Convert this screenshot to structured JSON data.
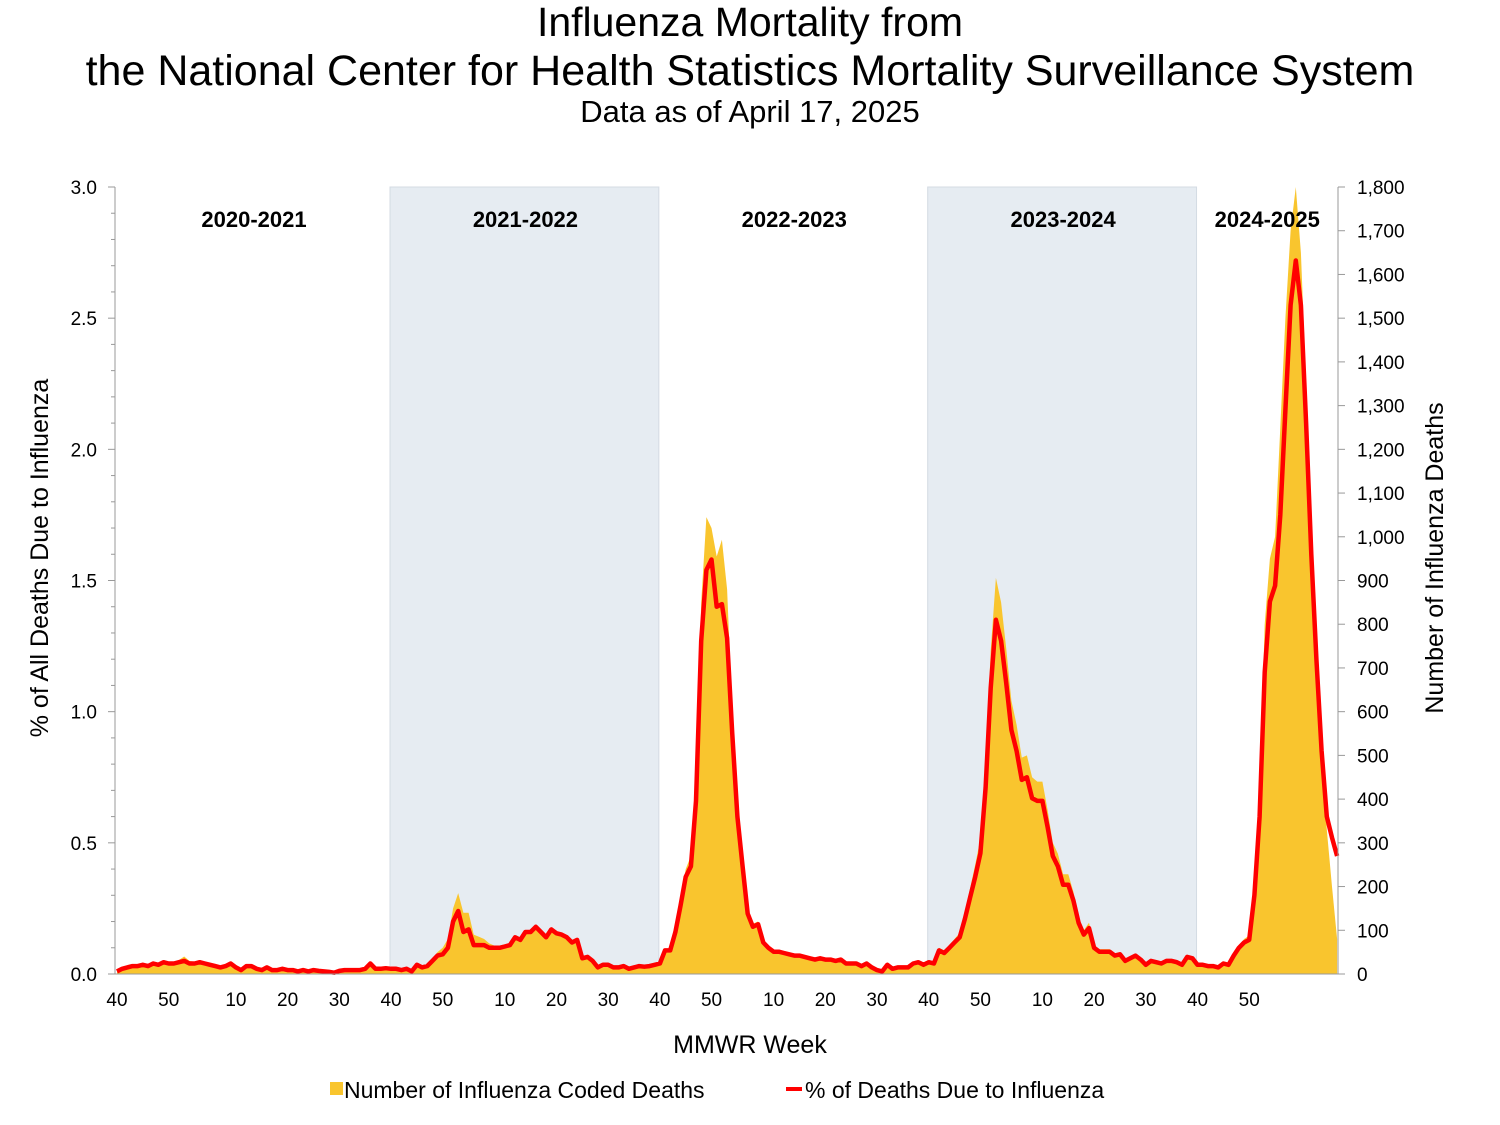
{
  "title_line1": "Influenza Mortality from",
  "title_line2": "the National Center for Health Statistics Mortality Surveillance System",
  "subtitle": "Data as of April 17, 2025",
  "chart_data": {
    "type": "area+line",
    "xlabel": "MMWR Week",
    "ylabel_left": "% of All Deaths Due to Influenza",
    "ylabel_right": "Number of Influenza Deaths",
    "ylim_left": [
      0,
      3.0
    ],
    "ylim_right": [
      0,
      1800
    ],
    "left_ticks": [
      "0.0",
      "0.5",
      "1.0",
      "1.5",
      "2.0",
      "2.5",
      "3.0"
    ],
    "right_ticks": [
      "0",
      "100",
      "200",
      "300",
      "400",
      "500",
      "600",
      "700",
      "800",
      "900",
      "1,000",
      "1,100",
      "1,200",
      "1,300",
      "1,400",
      "1,500",
      "1,600",
      "1,700",
      "1,800"
    ],
    "x_tick_weeks": [
      40,
      50,
      10,
      20,
      30
    ],
    "start_week": 40,
    "grid": false,
    "legend_placement": "bottom",
    "colors": {
      "deaths_area": "#F9C52E",
      "pct_line": "#FF0000",
      "shaded_season": "#E6ECF2"
    },
    "legend": {
      "deaths": "Number of Influenza Coded Deaths",
      "pct": "% of Deaths Due to Influenza"
    },
    "seasons": [
      {
        "label": "2020-2021",
        "shaded": false,
        "pct": [
          0.01,
          0.02,
          0.025,
          0.03,
          0.03,
          0.035,
          0.03,
          0.04,
          0.035,
          0.045,
          0.04,
          0.04,
          0.045,
          0.05,
          0.04,
          0.04,
          0.045,
          0.04,
          0.035,
          0.03,
          0.025,
          0.03,
          0.04,
          0.025,
          0.015,
          0.03,
          0.03,
          0.02,
          0.015,
          0.025,
          0.015,
          0.015,
          0.02,
          0.015,
          0.015,
          0.01,
          0.015,
          0.01,
          0.015,
          0.012,
          0.01,
          0.008,
          0.005,
          0.012,
          0.015,
          0.015,
          0.015,
          0.015,
          0.02,
          0.04,
          0.02,
          0.02,
          0.022
        ],
        "deaths": [
          6,
          13,
          16,
          19,
          20,
          23,
          20,
          26,
          23,
          29,
          27,
          28,
          32,
          40,
          30,
          28,
          30,
          26,
          22,
          19,
          16,
          19,
          25,
          16,
          9,
          19,
          19,
          12,
          9,
          16,
          9,
          9,
          12,
          9,
          9,
          6,
          9,
          6,
          9,
          7,
          6,
          5,
          3,
          7,
          9,
          9,
          9,
          9,
          12,
          25,
          12,
          12,
          14
        ]
      },
      {
        "label": "2021-2022",
        "shaded": true,
        "pct": [
          0.02,
          0.02,
          0.015,
          0.02,
          0.01,
          0.035,
          0.025,
          0.03,
          0.05,
          0.07,
          0.075,
          0.1,
          0.2,
          0.24,
          0.16,
          0.17,
          0.11,
          0.11,
          0.11,
          0.1,
          0.1,
          0.1,
          0.105,
          0.11,
          0.14,
          0.13,
          0.16,
          0.16,
          0.18,
          0.16,
          0.14,
          0.17,
          0.155,
          0.15,
          0.14,
          0.12,
          0.13,
          0.06,
          0.065,
          0.05,
          0.025,
          0.035,
          0.035,
          0.025,
          0.025,
          0.03,
          0.02,
          0.025,
          0.03,
          0.028,
          0.03,
          0.035
        ],
        "deaths": [
          12,
          12,
          9,
          12,
          6,
          22,
          16,
          19,
          35,
          50,
          60,
          80,
          150,
          185,
          140,
          140,
          90,
          85,
          80,
          70,
          65,
          65,
          68,
          70,
          88,
          82,
          98,
          100,
          108,
          96,
          85,
          100,
          92,
          90,
          85,
          72,
          78,
          36,
          40,
          30,
          15,
          21,
          21,
          15,
          15,
          18,
          12,
          15,
          18,
          17,
          18,
          21
        ]
      },
      {
        "label": "2022-2023",
        "shaded": false,
        "pct": [
          0.04,
          0.09,
          0.09,
          0.16,
          0.26,
          0.37,
          0.41,
          0.66,
          1.27,
          1.54,
          1.58,
          1.4,
          1.41,
          1.28,
          0.92,
          0.6,
          0.41,
          0.23,
          0.18,
          0.19,
          0.12,
          0.1,
          0.085,
          0.085,
          0.08,
          0.075,
          0.07,
          0.07,
          0.065,
          0.06,
          0.055,
          0.06,
          0.055,
          0.055,
          0.05,
          0.055,
          0.04,
          0.04,
          0.04,
          0.03,
          0.04,
          0.025,
          0.015,
          0.01,
          0.035,
          0.02,
          0.025,
          0.025,
          0.025,
          0.04,
          0.045,
          0.035
        ],
        "deaths": [
          25,
          55,
          58,
          100,
          165,
          240,
          270,
          440,
          850,
          1045,
          1020,
          955,
          993,
          880,
          600,
          390,
          260,
          150,
          115,
          120,
          78,
          65,
          55,
          55,
          52,
          48,
          45,
          45,
          42,
          39,
          36,
          39,
          36,
          36,
          32,
          36,
          26,
          26,
          26,
          20,
          26,
          16,
          10,
          7,
          23,
          13,
          16,
          16,
          16,
          26,
          29,
          23
        ]
      },
      {
        "label": "2023-2024",
        "shaded": true,
        "pct": [
          0.045,
          0.04,
          0.09,
          0.08,
          0.1,
          0.12,
          0.14,
          0.21,
          0.29,
          0.37,
          0.46,
          0.71,
          1.09,
          1.35,
          1.27,
          1.11,
          0.93,
          0.85,
          0.74,
          0.75,
          0.67,
          0.66,
          0.66,
          0.56,
          0.45,
          0.41,
          0.34,
          0.34,
          0.28,
          0.195,
          0.15,
          0.175,
          0.1,
          0.085,
          0.085,
          0.085,
          0.07,
          0.075,
          0.05,
          0.06,
          0.07,
          0.055,
          0.035,
          0.05,
          0.045,
          0.04,
          0.05,
          0.05,
          0.045,
          0.035,
          0.065,
          0.06
        ],
        "deaths": [
          30,
          27,
          60,
          54,
          67,
          80,
          94,
          140,
          195,
          250,
          310,
          480,
          740,
          906,
          850,
          745,
          625,
          570,
          495,
          500,
          450,
          440,
          440,
          375,
          300,
          275,
          228,
          228,
          188,
          130,
          100,
          117,
          67,
          57,
          57,
          57,
          47,
          50,
          34,
          40,
          47,
          37,
          23,
          34,
          30,
          27,
          34,
          34,
          30,
          23,
          44,
          40
        ]
      },
      {
        "label": "2024-2025",
        "shaded": false,
        "pct": [
          0.035,
          0.035,
          0.03,
          0.03,
          0.025,
          0.04,
          0.035,
          0.07,
          0.1,
          0.12,
          0.13,
          0.3,
          0.6,
          1.15,
          1.42,
          1.48,
          1.75,
          2.15,
          2.55,
          2.72,
          2.55,
          2.1,
          1.6,
          1.2,
          0.85,
          0.6,
          0.52,
          0.45
        ],
        "deaths": [
          22,
          22,
          19,
          19,
          16,
          26,
          22,
          45,
          65,
          80,
          88,
          200,
          420,
          800,
          950,
          1000,
          1250,
          1500,
          1700,
          1800,
          1650,
          1350,
          1000,
          720,
          500,
          330,
          200,
          80
        ]
      }
    ]
  }
}
